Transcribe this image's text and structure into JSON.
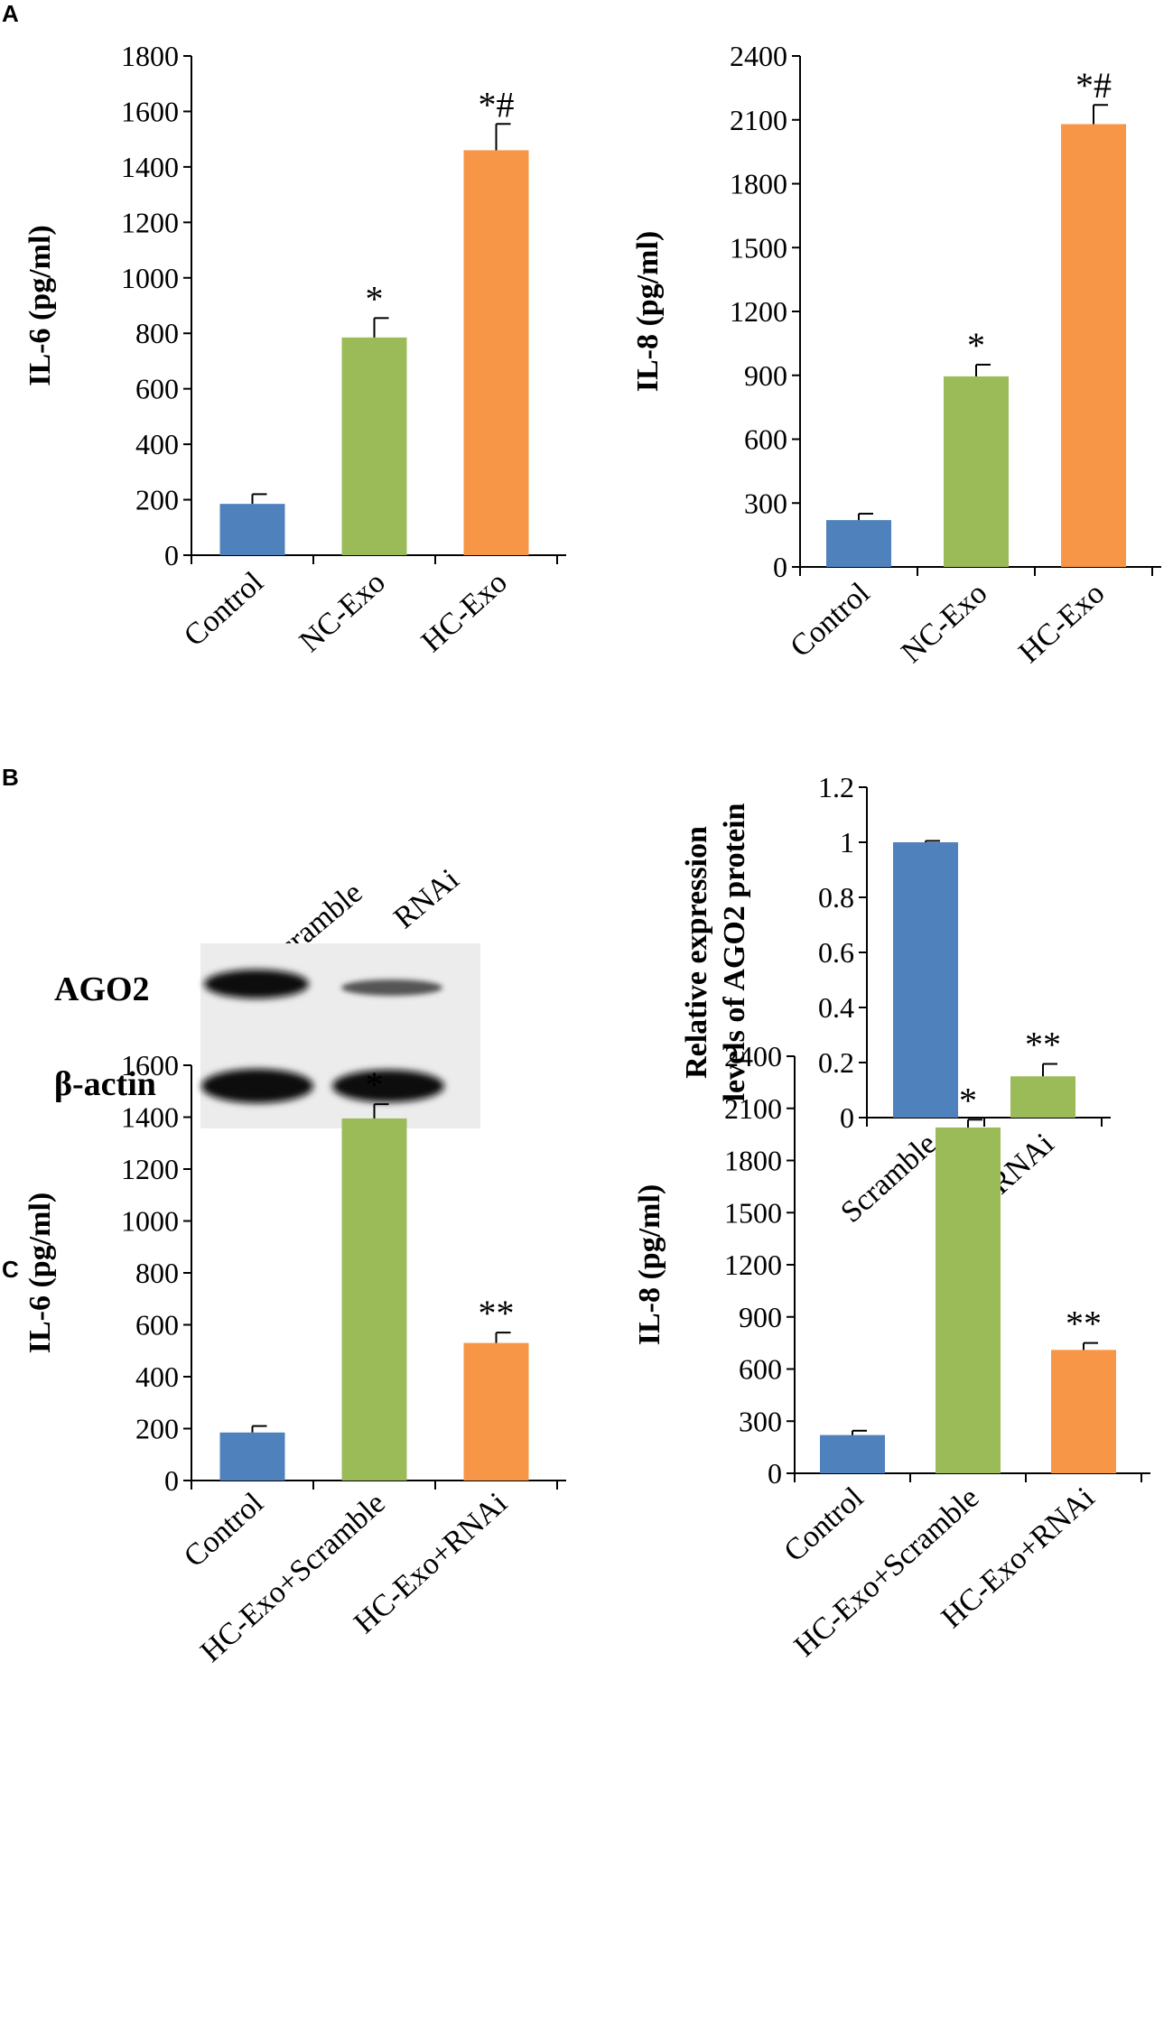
{
  "colors": {
    "blue": "#4f81bd",
    "green": "#9bbb59",
    "orange": "#f79646",
    "axis": "#000000"
  },
  "panels": [
    {
      "letter": "A"
    },
    {
      "letter": "B"
    },
    {
      "letter": "C"
    }
  ],
  "blot": {
    "lanes": [
      "Scramble",
      "RNAi"
    ],
    "rows": [
      "AGO2",
      "β-actin"
    ]
  },
  "chart_data": [
    {
      "type": "bar",
      "panel": "A",
      "ylabel": "IL-6 (pg/ml)",
      "categories": [
        "Control",
        "NC-Exo",
        "HC-Exo"
      ],
      "values": [
        185,
        785,
        1460
      ],
      "errors": [
        35,
        70,
        95
      ],
      "significance": [
        "",
        "*",
        "*#"
      ],
      "bar_colors": [
        "#4f81bd",
        "#9bbb59",
        "#f79646"
      ],
      "ylim": [
        0,
        1800
      ],
      "yticks": [
        0,
        200,
        400,
        600,
        800,
        1000,
        1200,
        1400,
        1600,
        1800
      ]
    },
    {
      "type": "bar",
      "panel": "A",
      "ylabel": "IL-8 (pg/ml)",
      "categories": [
        "Control",
        "NC-Exo",
        "HC-Exo"
      ],
      "values": [
        220,
        895,
        2080
      ],
      "errors": [
        30,
        55,
        90
      ],
      "significance": [
        "",
        "*",
        "*#"
      ],
      "bar_colors": [
        "#4f81bd",
        "#9bbb59",
        "#f79646"
      ],
      "ylim": [
        0,
        2400
      ],
      "yticks": [
        0,
        300,
        600,
        900,
        1200,
        1500,
        1800,
        2100,
        2400
      ]
    },
    {
      "type": "bar",
      "panel": "B",
      "ylabel": [
        "Relative expression",
        "levels of AGO2 protein"
      ],
      "categories": [
        "Scramble",
        "RNAi"
      ],
      "values": [
        1.0,
        0.15
      ],
      "errors": [
        0.005,
        0.045
      ],
      "significance": [
        "",
        "**"
      ],
      "bar_colors": [
        "#4f81bd",
        "#9bbb59"
      ],
      "ylim": [
        0,
        1.2
      ],
      "yticks": [
        0,
        0.2,
        0.4,
        0.6,
        0.8,
        1,
        1.2
      ]
    },
    {
      "type": "bar",
      "panel": "C",
      "ylabel": "IL-6 (pg/ml)",
      "categories": [
        "Control",
        "HC-Exo+Scramble",
        "HC-Exo+RNAi"
      ],
      "values": [
        185,
        1395,
        530
      ],
      "errors": [
        25,
        55,
        40
      ],
      "significance": [
        "",
        "*",
        "**"
      ],
      "bar_colors": [
        "#4f81bd",
        "#9bbb59",
        "#f79646"
      ],
      "ylim": [
        0,
        1600
      ],
      "yticks": [
        0,
        200,
        400,
        600,
        800,
        1000,
        1200,
        1400,
        1600
      ]
    },
    {
      "type": "bar",
      "panel": "C",
      "ylabel": "IL-8 (pg/ml)",
      "categories": [
        "Control",
        "HC-Exo+Scramble",
        "HC-Exo+RNAi"
      ],
      "values": [
        220,
        1990,
        710
      ],
      "errors": [
        25,
        45,
        40
      ],
      "significance": [
        "",
        "*",
        "**"
      ],
      "bar_colors": [
        "#4f81bd",
        "#9bbb59",
        "#f79646"
      ],
      "ylim": [
        0,
        2400
      ],
      "yticks": [
        0,
        300,
        600,
        900,
        1200,
        1500,
        1800,
        2100,
        2400
      ]
    }
  ]
}
